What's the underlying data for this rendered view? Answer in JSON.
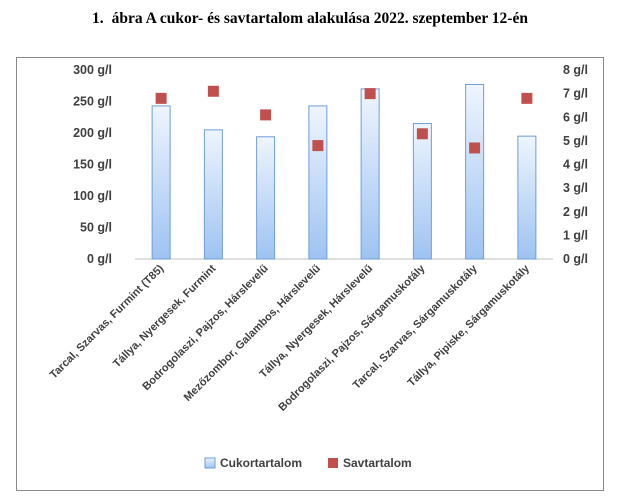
{
  "figure": {
    "number": "1.",
    "title": "ábra A cukor- és savtartalom alakulása 2022. szeptember 12-én"
  },
  "chart_data": {
    "type": "bar",
    "categories": [
      "Tarcal, Szarvas, Furmint (T85)",
      "Tállya, Nyergesek, Furmint",
      "Bodrogolaszi, Pajzos, Hárslevelű",
      "Mezőzombor, Galambos, Hárslevelű",
      "Tállya, Nyergesek, Hárslevelű",
      "Bodrogolaszi, Pajzos, Sárgamuskotály",
      "Tarcal, Szarvas, Sárgamuskotály",
      "Tállya, Pipiske, Sárgamuskotály"
    ],
    "series": [
      {
        "name": "Cukortartalom",
        "type": "bar",
        "axis": "left",
        "values": [
          243,
          205,
          194,
          243,
          270,
          215,
          277,
          195
        ],
        "color": "#9ec3f2"
      },
      {
        "name": "Savtartalom",
        "type": "scatter",
        "axis": "right",
        "values": [
          6.8,
          7.1,
          6.1,
          4.8,
          7.0,
          5.3,
          4.7,
          6.8
        ],
        "color": "#c0504d"
      }
    ],
    "y_left": {
      "ylim": [
        0,
        300
      ],
      "ticks": [
        "0 g/l",
        "50 g/l",
        "100 g/l",
        "150 g/l",
        "200 g/l",
        "250 g/l",
        "300 g/l"
      ]
    },
    "y_right": {
      "ylim": [
        0,
        8
      ],
      "ticks": [
        "0 g/l",
        "1 g/l",
        "2 g/l",
        "3 g/l",
        "4 g/l",
        "5 g/l",
        "6 g/l",
        "7 g/l",
        "8 g/l"
      ]
    },
    "xlabel": "",
    "ylabel": "",
    "grid": false,
    "legend": "bottom"
  }
}
